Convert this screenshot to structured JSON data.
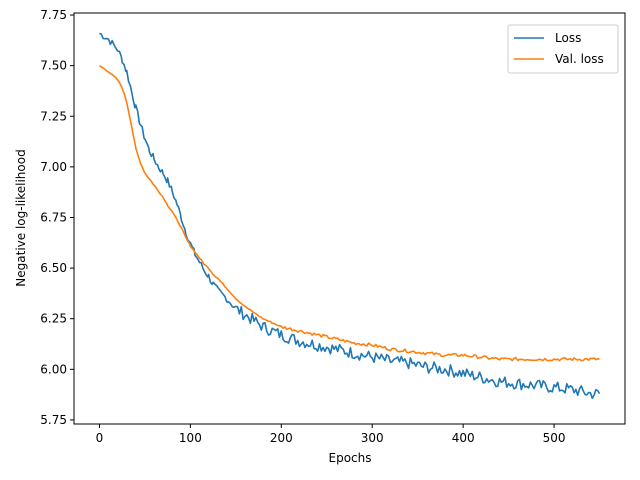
{
  "chart_data": {
    "type": "line",
    "title": "",
    "xlabel": "Epochs",
    "ylabel": "Negative log-likelihood",
    "xlim": [
      -28,
      578
    ],
    "ylim": [
      5.73,
      7.76
    ],
    "xticks": [
      "0",
      "100",
      "200",
      "300",
      "400",
      "500"
    ],
    "yticks": [
      "5.75",
      "6.00",
      "6.25",
      "6.50",
      "6.75",
      "7.00",
      "7.25",
      "7.50",
      "7.75"
    ],
    "grid": false,
    "legend_position": "top-right",
    "series": [
      {
        "name": "Loss",
        "color": "#1f77b4",
        "x": [
          0,
          10,
          20,
          25,
          30,
          35,
          40,
          45,
          50,
          55,
          60,
          65,
          70,
          75,
          80,
          85,
          90,
          95,
          100,
          105,
          110,
          115,
          120,
          125,
          130,
          140,
          150,
          160,
          170,
          180,
          190,
          200,
          220,
          240,
          260,
          280,
          300,
          320,
          340,
          360,
          380,
          400,
          420,
          440,
          460,
          480,
          500,
          520,
          540,
          550
        ],
        "y": [
          7.66,
          7.63,
          7.58,
          7.53,
          7.47,
          7.38,
          7.29,
          7.21,
          7.14,
          7.08,
          7.04,
          7.0,
          6.97,
          6.93,
          6.88,
          6.82,
          6.75,
          6.68,
          6.62,
          6.57,
          6.53,
          6.49,
          6.46,
          6.42,
          6.39,
          6.35,
          6.3,
          6.27,
          6.24,
          6.21,
          6.19,
          6.17,
          6.14,
          6.12,
          6.1,
          6.08,
          6.06,
          6.04,
          6.03,
          6.01,
          6.0,
          5.98,
          5.96,
          5.94,
          5.93,
          5.92,
          5.91,
          5.9,
          5.88,
          5.88
        ]
      },
      {
        "name": "Val. loss",
        "color": "#ff7f0e",
        "x": [
          0,
          10,
          20,
          25,
          30,
          35,
          40,
          45,
          50,
          55,
          60,
          65,
          70,
          75,
          80,
          85,
          90,
          95,
          100,
          105,
          110,
          115,
          120,
          125,
          130,
          140,
          150,
          160,
          170,
          180,
          190,
          200,
          220,
          240,
          260,
          280,
          300,
          320,
          340,
          360,
          380,
          400,
          420,
          440,
          460,
          480,
          500,
          520,
          540,
          550
        ],
        "y": [
          7.5,
          7.47,
          7.43,
          7.39,
          7.32,
          7.21,
          7.09,
          7.02,
          6.97,
          6.94,
          6.91,
          6.88,
          6.85,
          6.81,
          6.78,
          6.74,
          6.7,
          6.65,
          6.61,
          6.58,
          6.55,
          6.52,
          6.5,
          6.47,
          6.45,
          6.4,
          6.35,
          6.31,
          6.28,
          6.25,
          6.23,
          6.21,
          6.19,
          6.17,
          6.15,
          6.13,
          6.12,
          6.1,
          6.09,
          6.08,
          6.07,
          6.07,
          6.06,
          6.05,
          6.05,
          6.05,
          6.05,
          6.05,
          6.05,
          6.05
        ]
      }
    ]
  }
}
